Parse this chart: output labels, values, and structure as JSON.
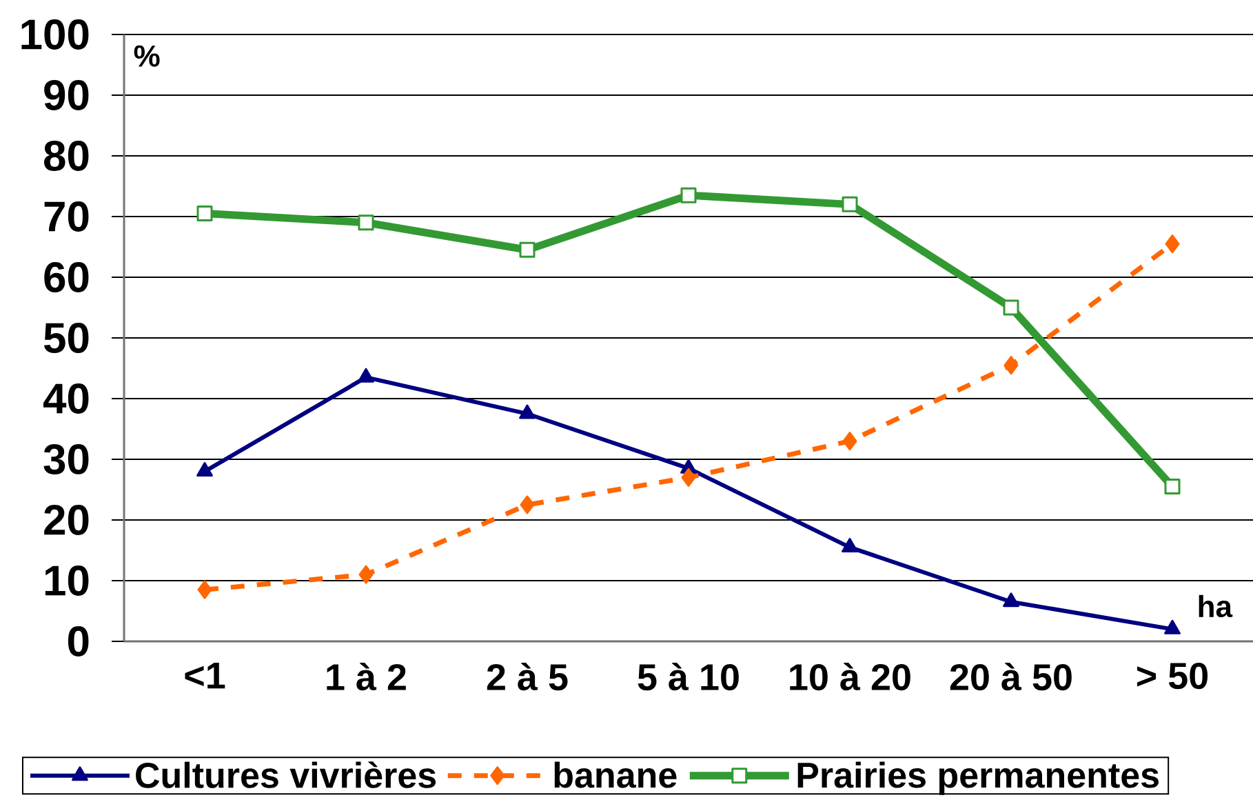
{
  "chart_data": {
    "type": "line",
    "xlabel": "ha",
    "ylabel": "%",
    "categories": [
      "<1",
      "1 à 2",
      "2 à 5",
      "5 à 10",
      "10 à 20",
      "20 à 50",
      "> 50"
    ],
    "series": [
      {
        "name": "Cultures vivrières",
        "color": "#000080",
        "marker": "triangle",
        "line_style": "solid",
        "values": [
          28,
          43.5,
          37.5,
          28.5,
          15.5,
          6.5,
          2
        ]
      },
      {
        "name": "banane",
        "color": "#ff6600",
        "marker": "diamond",
        "line_style": "dashed",
        "values": [
          8.5,
          11,
          22.5,
          27,
          33,
          45.5,
          65.5
        ]
      },
      {
        "name": "Prairies permanentes",
        "color": "#339933",
        "marker": "square",
        "line_style": "solid",
        "values": [
          70.5,
          69,
          64.5,
          73.5,
          72,
          55,
          25.5
        ]
      }
    ],
    "ylim": [
      0,
      100
    ],
    "yticks": [
      0,
      10,
      20,
      30,
      40,
      50,
      60,
      70,
      80,
      90,
      100
    ],
    "grid": "y",
    "legend": "bottom"
  }
}
